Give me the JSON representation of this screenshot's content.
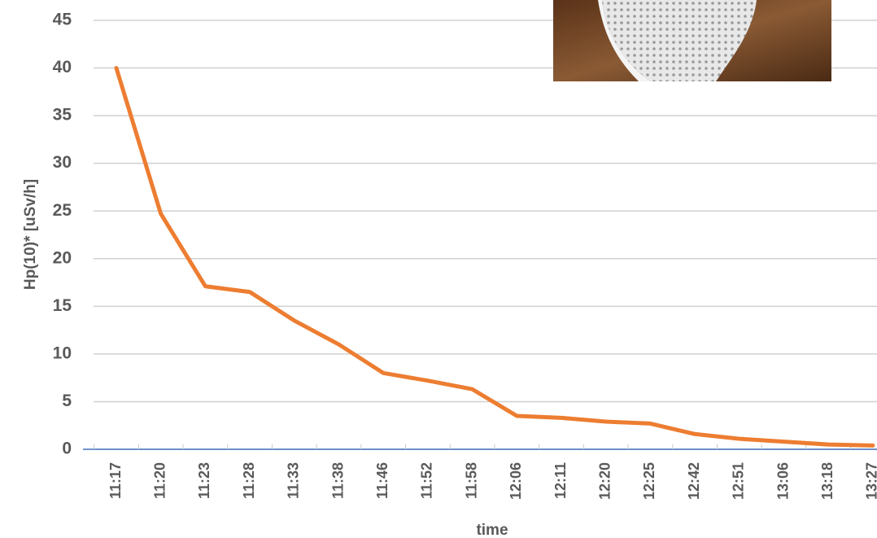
{
  "chart_data": {
    "type": "line",
    "x_label": "time",
    "y_label": "Hp(10)* [uSv/h]",
    "categories": [
      "11:17",
      "11:20",
      "11:23",
      "11:28",
      "11:33",
      "11:38",
      "11:46",
      "11:52",
      "11:58",
      "12:06",
      "12:11",
      "12:20",
      "12:25",
      "12:42",
      "12:51",
      "13:06",
      "13:18",
      "13:27"
    ],
    "series": [
      {
        "color": "#ed7d31",
        "values": [
          40,
          24.7,
          17.1,
          16.5,
          13.5,
          11,
          8,
          7.2,
          6.3,
          3.5,
          3.3,
          2.9,
          2.7,
          1.6,
          1.1,
          0.8,
          0.5,
          0.4
        ]
      }
    ],
    "ylim": [
      0,
      45
    ],
    "yticks": [
      0,
      5,
      10,
      15,
      20,
      25,
      30,
      35,
      40,
      45
    ],
    "grid": true
  }
}
